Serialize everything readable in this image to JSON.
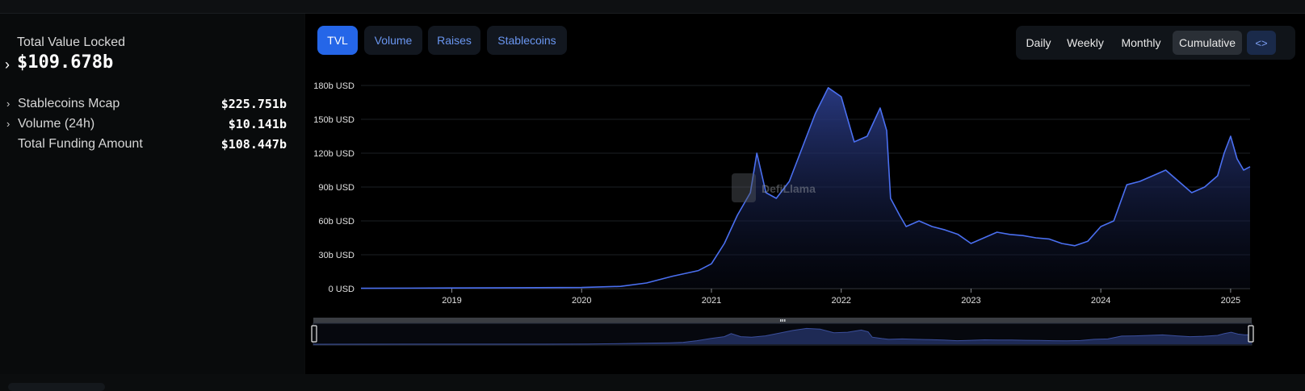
{
  "summary": {
    "tvl_title": "Total Value Locked",
    "tvl_value": "$109.678b",
    "stats": [
      {
        "label": "Stablecoins Mcap",
        "value": "$225.751b",
        "expandable": true
      },
      {
        "label": "Volume (24h)",
        "value": "$10.141b",
        "expandable": true
      },
      {
        "label": "Total Funding Amount",
        "value": "$108.447b",
        "expandable": false
      }
    ]
  },
  "tabs": [
    {
      "label": "TVL",
      "active": true
    },
    {
      "label": "Volume",
      "active": false
    },
    {
      "label": "Raises",
      "active": false
    },
    {
      "label": "Stablecoins",
      "active": false
    }
  ],
  "periods": [
    {
      "label": "Daily",
      "active": false
    },
    {
      "label": "Weekly",
      "active": false
    },
    {
      "label": "Monthly",
      "active": false
    },
    {
      "label": "Cumulative",
      "active": true
    }
  ],
  "embed_label": "<>",
  "watermark": "DefiLlama",
  "colors": {
    "accent": "#2566e8",
    "line": "#4a6ff0",
    "area_top": "#27357a"
  },
  "chart_data": {
    "type": "area",
    "title": "",
    "xlabel": "",
    "ylabel": "",
    "ylim": [
      0,
      180
    ],
    "yticks": [
      {
        "v": 0,
        "label": "0 USD"
      },
      {
        "v": 30,
        "label": "30b USD"
      },
      {
        "v": 60,
        "label": "60b USD"
      },
      {
        "v": 90,
        "label": "90b USD"
      },
      {
        "v": 120,
        "label": "120b USD"
      },
      {
        "v": 150,
        "label": "150b USD"
      },
      {
        "v": 180,
        "label": "180b USD"
      }
    ],
    "xlim": [
      2018.3,
      2025.15
    ],
    "xticks": [
      "2019",
      "2020",
      "2021",
      "2022",
      "2023",
      "2024",
      "2025"
    ],
    "grid": true,
    "series": [
      {
        "values_x": [
          2018.3,
          2019.0,
          2019.5,
          2020.0,
          2020.3,
          2020.5,
          2020.7,
          2020.9,
          2021.0,
          2021.1,
          2021.2,
          2021.3,
          2021.35,
          2021.42,
          2021.5,
          2021.6,
          2021.7,
          2021.8,
          2021.9,
          2022.0,
          2022.1,
          2022.2,
          2022.3,
          2022.35,
          2022.38,
          2022.45,
          2022.5,
          2022.6,
          2022.7,
          2022.8,
          2022.9,
          2023.0,
          2023.1,
          2023.2,
          2023.3,
          2023.4,
          2023.5,
          2023.6,
          2023.7,
          2023.8,
          2023.9,
          2024.0,
          2024.1,
          2024.2,
          2024.3,
          2024.4,
          2024.5,
          2024.6,
          2024.7,
          2024.8,
          2024.9,
          2024.95,
          2025.0,
          2025.05,
          2025.1,
          2025.15
        ],
        "values_y": [
          0.3,
          0.6,
          0.8,
          1.0,
          2.0,
          5.0,
          11.0,
          16.0,
          22.0,
          40.0,
          65.0,
          85.0,
          120.0,
          85.0,
          80.0,
          95.0,
          125.0,
          155.0,
          178.0,
          170.0,
          130.0,
          135.0,
          160.0,
          140.0,
          80.0,
          65.0,
          55.0,
          60.0,
          55.0,
          52.0,
          48.0,
          40.0,
          45.0,
          50.0,
          48.0,
          47.0,
          45.0,
          44.0,
          40.0,
          38.0,
          42.0,
          55.0,
          60.0,
          92.0,
          95.0,
          100.0,
          105.0,
          95.0,
          85.0,
          90.0,
          100.0,
          120.0,
          135.0,
          115.0,
          105.0,
          108.0
        ]
      }
    ]
  }
}
